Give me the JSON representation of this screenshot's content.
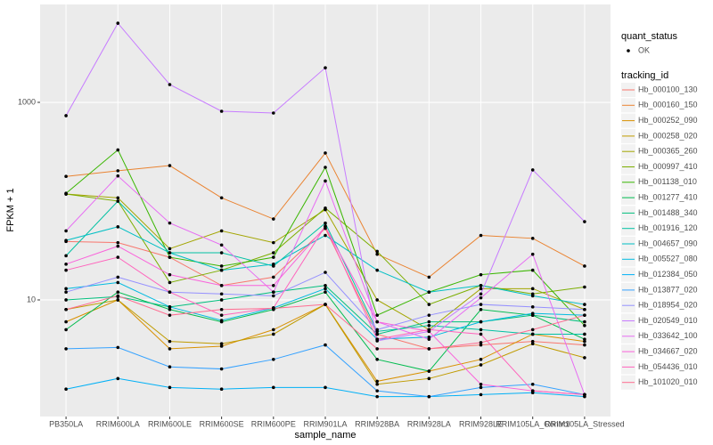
{
  "chart_data": {
    "type": "line",
    "x_label": "sample_name",
    "y_label": "FPKM + 1",
    "log_y": true,
    "grid": true,
    "point_color": "#000000",
    "ylim": [
      0.66,
      9800
    ],
    "yticks": [
      10,
      1000
    ],
    "categories": [
      "PB350LA",
      "RRIM600LA",
      "RRIM600LE",
      "RRIM600SE",
      "RRIM600PE",
      "RRIM901LA",
      "RRIM928BA",
      "RRIM928LA",
      "RRIM928LE",
      "RRIM105LA_Control",
      "RRIM105LA_Stressed"
    ],
    "legend": {
      "points_title": "quant_status",
      "points_levels": [
        "OK"
      ],
      "title": "tracking_id"
    },
    "series": [
      {
        "name": "Hb_000100_130",
        "color": "#F8766D",
        "values": [
          39,
          38,
          27,
          14,
          17,
          53,
          4.5,
          3.2,
          3.5,
          3.8,
          3.5
        ]
      },
      {
        "name": "Hb_000160_150",
        "color": "#EA8331",
        "values": [
          178,
          203,
          229,
          108,
          66,
          307,
          29,
          17,
          45,
          42,
          22
        ]
      },
      {
        "name": "Hb_000252_090",
        "color": "#D89000",
        "values": [
          6,
          10,
          3.2,
          3.4,
          5,
          9,
          1.5,
          1.9,
          2.5,
          4.5,
          3.8
        ]
      },
      {
        "name": "Hb_000258_020",
        "color": "#C09B00",
        "values": [
          8,
          10,
          3.8,
          3.6,
          4.5,
          9,
          1.4,
          1.6,
          2.2,
          3.6,
          2.6
        ]
      },
      {
        "name": "Hb_000365_260",
        "color": "#A3A500",
        "values": [
          118,
          108,
          33,
          50,
          38,
          82,
          10,
          5,
          13,
          13,
          8
        ]
      },
      {
        "name": "Hb_000997_410",
        "color": "#7CAE00",
        "values": [
          118,
          100,
          15,
          20,
          30,
          85,
          31,
          9,
          14,
          11.5,
          13.5
        ]
      },
      {
        "name": "Hb_001138_010",
        "color": "#39B600",
        "values": [
          120,
          330,
          27,
          22,
          27,
          220,
          7,
          12,
          18,
          20,
          5.5
        ]
      },
      {
        "name": "Hb_001277_410",
        "color": "#00BB4E",
        "values": [
          5,
          12,
          8,
          6,
          8,
          12,
          2.5,
          1.9,
          8,
          7,
          4
        ]
      },
      {
        "name": "Hb_001488_340",
        "color": "#00BF7D",
        "values": [
          10,
          10.8,
          8.5,
          10,
          12,
          14,
          4.5,
          6,
          6,
          7,
          6
        ]
      },
      {
        "name": "Hb_001916_120",
        "color": "#00C1A3",
        "values": [
          28,
          100,
          30,
          30,
          22,
          60,
          4.8,
          5.5,
          5,
          4.5,
          4.5
        ]
      },
      {
        "name": "Hb_004657_090",
        "color": "#00BFC4",
        "values": [
          40,
          55,
          30,
          20,
          23,
          45,
          20,
          12,
          14,
          11,
          9
        ]
      },
      {
        "name": "Hb_005527_080",
        "color": "#00BAE0",
        "values": [
          13,
          15,
          8.5,
          6.2,
          8.3,
          13,
          4,
          4.2,
          6,
          7.3,
          7
        ]
      },
      {
        "name": "Hb_012384_050",
        "color": "#00B0F6",
        "values": [
          1.25,
          1.6,
          1.3,
          1.25,
          1.3,
          1.3,
          1.05,
          1.05,
          1.1,
          1.15,
          1.05
        ]
      },
      {
        "name": "Hb_013877_020",
        "color": "#35A2FF",
        "values": [
          3.2,
          3.3,
          2.1,
          2,
          2.5,
          3.5,
          1.2,
          1.05,
          1.3,
          1.4,
          1.1
        ]
      },
      {
        "name": "Hb_018954_020",
        "color": "#9590FF",
        "values": [
          12,
          17,
          12,
          11.5,
          11,
          19,
          5,
          7,
          9,
          8.5,
          8
        ]
      },
      {
        "name": "Hb_020549_010",
        "color": "#C77CFF",
        "values": [
          733,
          6330,
          1515,
          813,
          780,
          2240,
          3.85,
          4.8,
          11.5,
          207,
          62
        ]
      },
      {
        "name": "Hb_033642_100",
        "color": "#E76BF3",
        "values": [
          50,
          180,
          60,
          36,
          12,
          160,
          6,
          4,
          10.5,
          29,
          1.1
        ]
      },
      {
        "name": "Hb_034667_020",
        "color": "#FA62DB",
        "values": [
          23,
          35,
          18,
          14,
          14,
          55,
          6,
          4.8,
          1.4,
          1.2,
          1.1
        ]
      },
      {
        "name": "Hb_054436_010",
        "color": "#FF62BC",
        "values": [
          20,
          27,
          12,
          7,
          8.3,
          56,
          4,
          5,
          4.5,
          1.2,
          1.1
        ]
      },
      {
        "name": "Hb_101020_010",
        "color": "#FF6C91",
        "values": [
          8,
          11,
          7,
          8,
          8.2,
          9,
          3.2,
          3.2,
          3.7,
          5,
          7
        ]
      }
    ]
  }
}
